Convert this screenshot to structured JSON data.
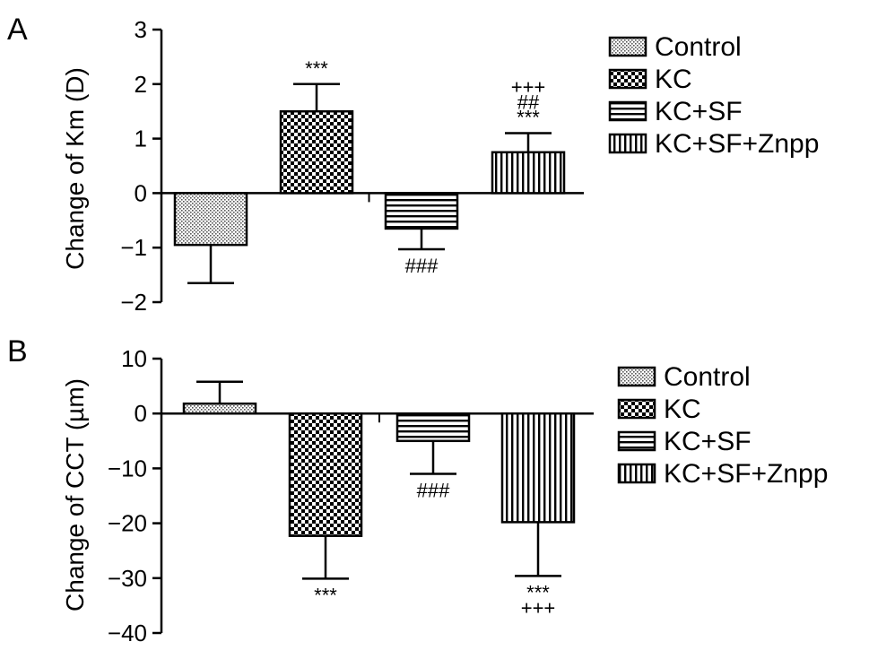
{
  "chart_data": [
    {
      "panel": "A",
      "type": "bar",
      "ylabel": "Change of Km (D)",
      "xlabel": "",
      "ylim": [
        -2,
        3
      ],
      "yticks": [
        -2,
        -1,
        0,
        1,
        2,
        3
      ],
      "ytick_labels": [
        "−2",
        "−1",
        "0",
        "1",
        "2",
        "3"
      ],
      "categories": [
        "Control",
        "KC",
        "KC+SF",
        "KC+SF+Znpp"
      ],
      "values": [
        -0.95,
        1.5,
        -0.65,
        0.75
      ],
      "errors": [
        0.7,
        0.5,
        0.38,
        0.35
      ],
      "significance": [
        [],
        [
          "***"
        ],
        [
          "###"
        ],
        [
          "+++",
          "##",
          "***"
        ]
      ],
      "legend": [
        "Control",
        "KC",
        "KC+SF",
        "KC+SF+Znpp"
      ],
      "legend_position": "right",
      "grid": false
    },
    {
      "panel": "B",
      "type": "bar",
      "ylabel": "Change of CCT (µm)",
      "xlabel": "",
      "ylim": [
        -40,
        10
      ],
      "yticks": [
        -40,
        -30,
        -20,
        -10,
        0,
        10
      ],
      "ytick_labels": [
        "−40",
        "−30",
        "−20",
        "−10",
        "0",
        "10"
      ],
      "categories": [
        "Control",
        "KC",
        "KC+SF",
        "KC+SF+Znpp"
      ],
      "values": [
        1.8,
        -22.3,
        -5.0,
        -19.8
      ],
      "errors": [
        4.0,
        7.8,
        6.0,
        9.8
      ],
      "significance": [
        [],
        [
          "***"
        ],
        [
          "###"
        ],
        [
          "***",
          "+++"
        ]
      ],
      "legend": [
        "Control",
        "KC",
        "KC+SF",
        "KC+SF+Znpp"
      ],
      "legend_position": "right",
      "grid": false
    }
  ]
}
